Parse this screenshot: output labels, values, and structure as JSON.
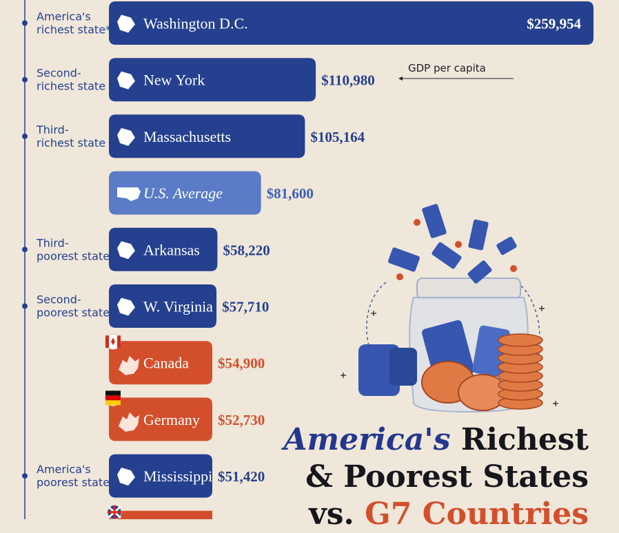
{
  "chart_data": {
    "type": "bar",
    "orientation": "horizontal",
    "categories": [
      "Washington D.C.",
      "New York",
      "Massachusetts",
      "U.S. Average",
      "Arkansas",
      "W. Virginia",
      "Canada",
      "Germany",
      "Mississippi"
    ],
    "values": [
      259954,
      110980,
      105164,
      81600,
      58220,
      57710,
      54900,
      52730,
      51420
    ],
    "value_labels": [
      "$259,954",
      "$110,980",
      "$105,164",
      "$81,600",
      "$58,220",
      "$57,710",
      "$54,900",
      "$52,730",
      "$51,420"
    ],
    "kinds": [
      "state",
      "state",
      "state",
      "average",
      "state",
      "state",
      "country",
      "country",
      "state"
    ],
    "row_labels": [
      [
        "America's",
        "richest state*"
      ],
      [
        "Second-",
        "richest state"
      ],
      [
        "Third-",
        "richest state"
      ],
      [],
      [
        "Third-",
        "poorest state"
      ],
      [
        "Second-",
        "poorest state"
      ],
      [],
      [],
      [
        "America's",
        "poorest state"
      ]
    ],
    "annotation": "GDP per capita",
    "colors": {
      "state": "#25408f",
      "average": "#5a7cc6",
      "country": "#d34f2c"
    }
  },
  "title": {
    "line1_accent": "America's",
    "line1_rest": "Richest",
    "line2": "& Poorest States",
    "line3_prefix": "vs.",
    "line3_accent": "G7 Countries"
  },
  "icons": [
    "dc-shape-icon",
    "new-york-shape-icon",
    "massachusetts-shape-icon",
    "us-map-icon",
    "arkansas-shape-icon",
    "west-virginia-shape-icon",
    "canada-flag-icon",
    "germany-flag-icon",
    "mississippi-shape-icon",
    "uk-flag-icon"
  ],
  "colors": {
    "background": "#efe7d9",
    "ink": "#16161d"
  }
}
